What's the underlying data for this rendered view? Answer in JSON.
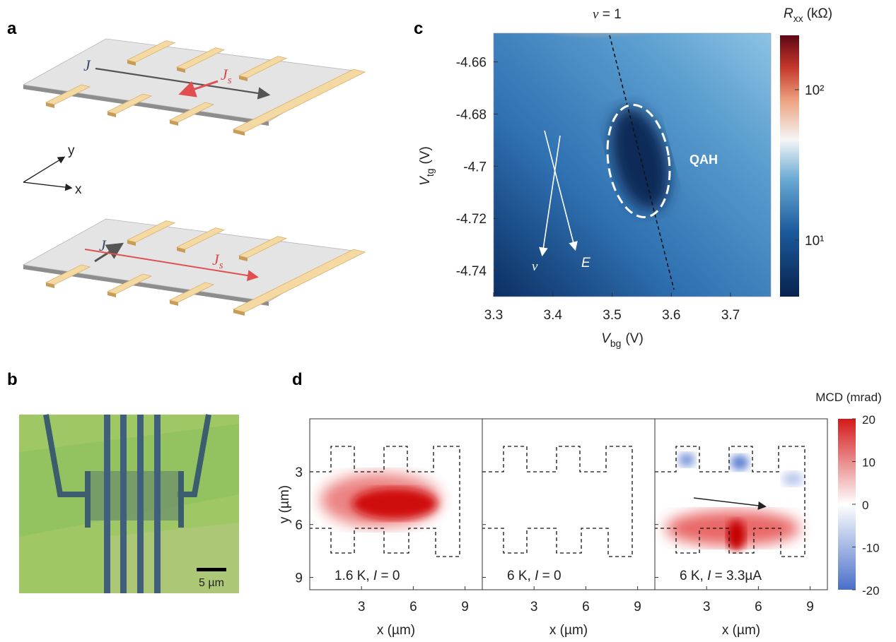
{
  "panel_labels": [
    "a",
    "b",
    "c",
    "d"
  ],
  "panel_a": {
    "top": {
      "current": "J",
      "spin_current": {
        "base": "J",
        "sub": "s"
      }
    },
    "bottom": {
      "current": "J",
      "spin_current": {
        "base": "J",
        "sub": "s"
      }
    },
    "axes": {
      "x": "x",
      "y": "y"
    }
  },
  "panel_b": {
    "scale_bar": "5 µm"
  },
  "panel_c": {
    "xlabel": {
      "symbol": "V",
      "sub": "bg",
      "unit": "(V)"
    },
    "ylabel": {
      "symbol": "V",
      "sub": "tg",
      "unit": "(V)"
    },
    "xlim": [
      3.3,
      3.768
    ],
    "ylim": [
      -4.75,
      -4.649
    ],
    "xticks": [
      3.3,
      3.4,
      3.5,
      3.6,
      3.7
    ],
    "yticks": [
      -4.66,
      -4.68,
      -4.7,
      -4.72,
      -4.74
    ],
    "filling_label": {
      "symbol": "ν",
      "text": " = 1"
    },
    "region_label": "QAH",
    "arrow_labels": [
      "ν",
      "E"
    ],
    "colorbar": {
      "label": {
        "symbol": "R",
        "sub": "xx",
        "unit": "(kΩ)"
      },
      "lim": [
        4.2,
        230
      ],
      "log": true,
      "ticks": [
        {
          "value": 10,
          "label": "10¹"
        },
        {
          "value": 100,
          "label": "10²"
        }
      ]
    }
  },
  "panel_d": {
    "xlabel": "x (µm)",
    "ylabel": "y (µm)",
    "xlim": [
      0,
      10
    ],
    "ylim": [
      0,
      9.7
    ],
    "xticks": [
      3,
      6,
      9
    ],
    "yticks": [
      3,
      6,
      9
    ],
    "maps": [
      {
        "prefix": "1.6 K, ",
        "var": "I",
        "suffix": " = 0"
      },
      {
        "prefix": "6 K, ",
        "var": "I",
        "suffix": " = 0"
      },
      {
        "prefix": "6 K, ",
        "var": "I",
        "suffix": " = 3.3µA"
      }
    ],
    "colorbar": {
      "label": "MCD (mrad)",
      "lim": [
        -20,
        20
      ],
      "ticks": [
        20,
        10,
        0,
        -10,
        -20
      ]
    }
  }
}
